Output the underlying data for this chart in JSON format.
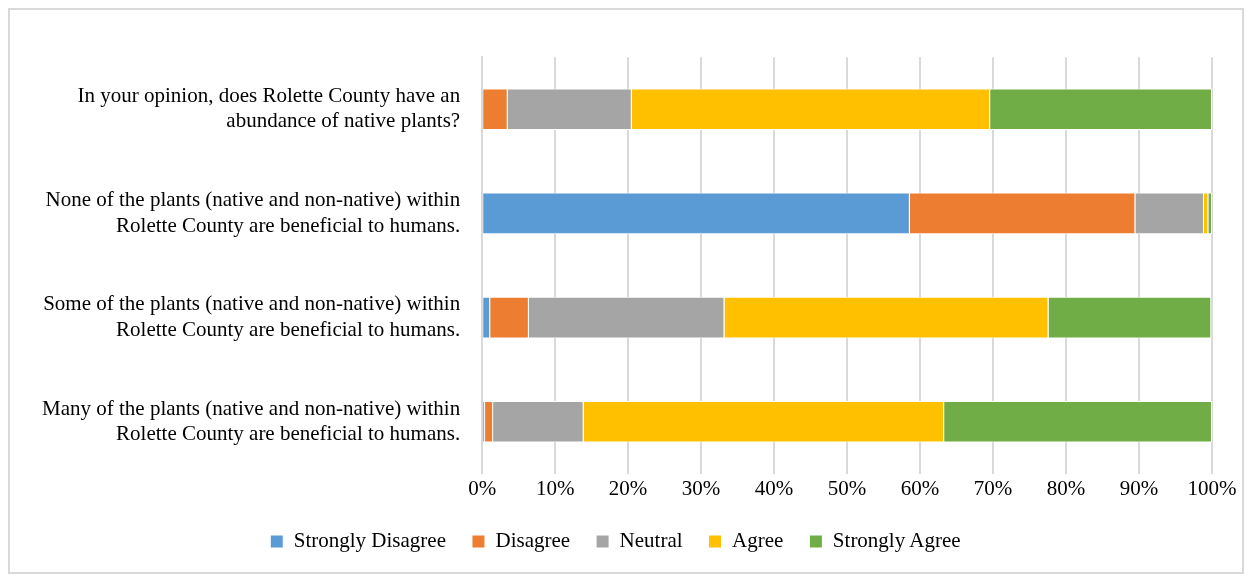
{
  "chart_data": {
    "type": "bar",
    "orientation": "horizontal",
    "stacked": true,
    "categories": [
      "In your opinion, does Rolette County have an abundance of native plants?",
      "None of the plants (native and non-native) within Rolette County are beneficial to humans.",
      "Some of the plants (native and non-native) within Rolette County are beneficial to humans.",
      "Many of the plants (native and non-native) within Rolette County are beneficial to humans."
    ],
    "series": [
      {
        "name": "Strongly Disagree",
        "color": "#5b9bd5",
        "values": [
          0,
          58.6,
          1.1,
          0.4
        ]
      },
      {
        "name": "Disagree",
        "color": "#ed7d31",
        "values": [
          3.5,
          30.9,
          5.3,
          1.1
        ]
      },
      {
        "name": "Neutral",
        "color": "#a5a5a5",
        "values": [
          17.0,
          9.4,
          26.8,
          12.4
        ]
      },
      {
        "name": "Agree",
        "color": "#ffc000",
        "values": [
          49.1,
          0.6,
          44.4,
          49.4
        ]
      },
      {
        "name": "Strongly Agree",
        "color": "#70ad47",
        "values": [
          30.4,
          0.5,
          22.3,
          36.7
        ]
      }
    ],
    "xlim": [
      0,
      100
    ],
    "xticks": [
      {
        "value": 0,
        "label": "0%"
      },
      {
        "value": 10,
        "label": "10%"
      },
      {
        "value": 20,
        "label": "20%"
      },
      {
        "value": 30,
        "label": "30%"
      },
      {
        "value": 40,
        "label": "40%"
      },
      {
        "value": 50,
        "label": "50%"
      },
      {
        "value": 60,
        "label": "60%"
      },
      {
        "value": 70,
        "label": "70%"
      },
      {
        "value": 80,
        "label": "80%"
      },
      {
        "value": 90,
        "label": "90%"
      },
      {
        "value": 100,
        "label": "100%"
      }
    ],
    "grid": "x",
    "legend": "bottom"
  }
}
